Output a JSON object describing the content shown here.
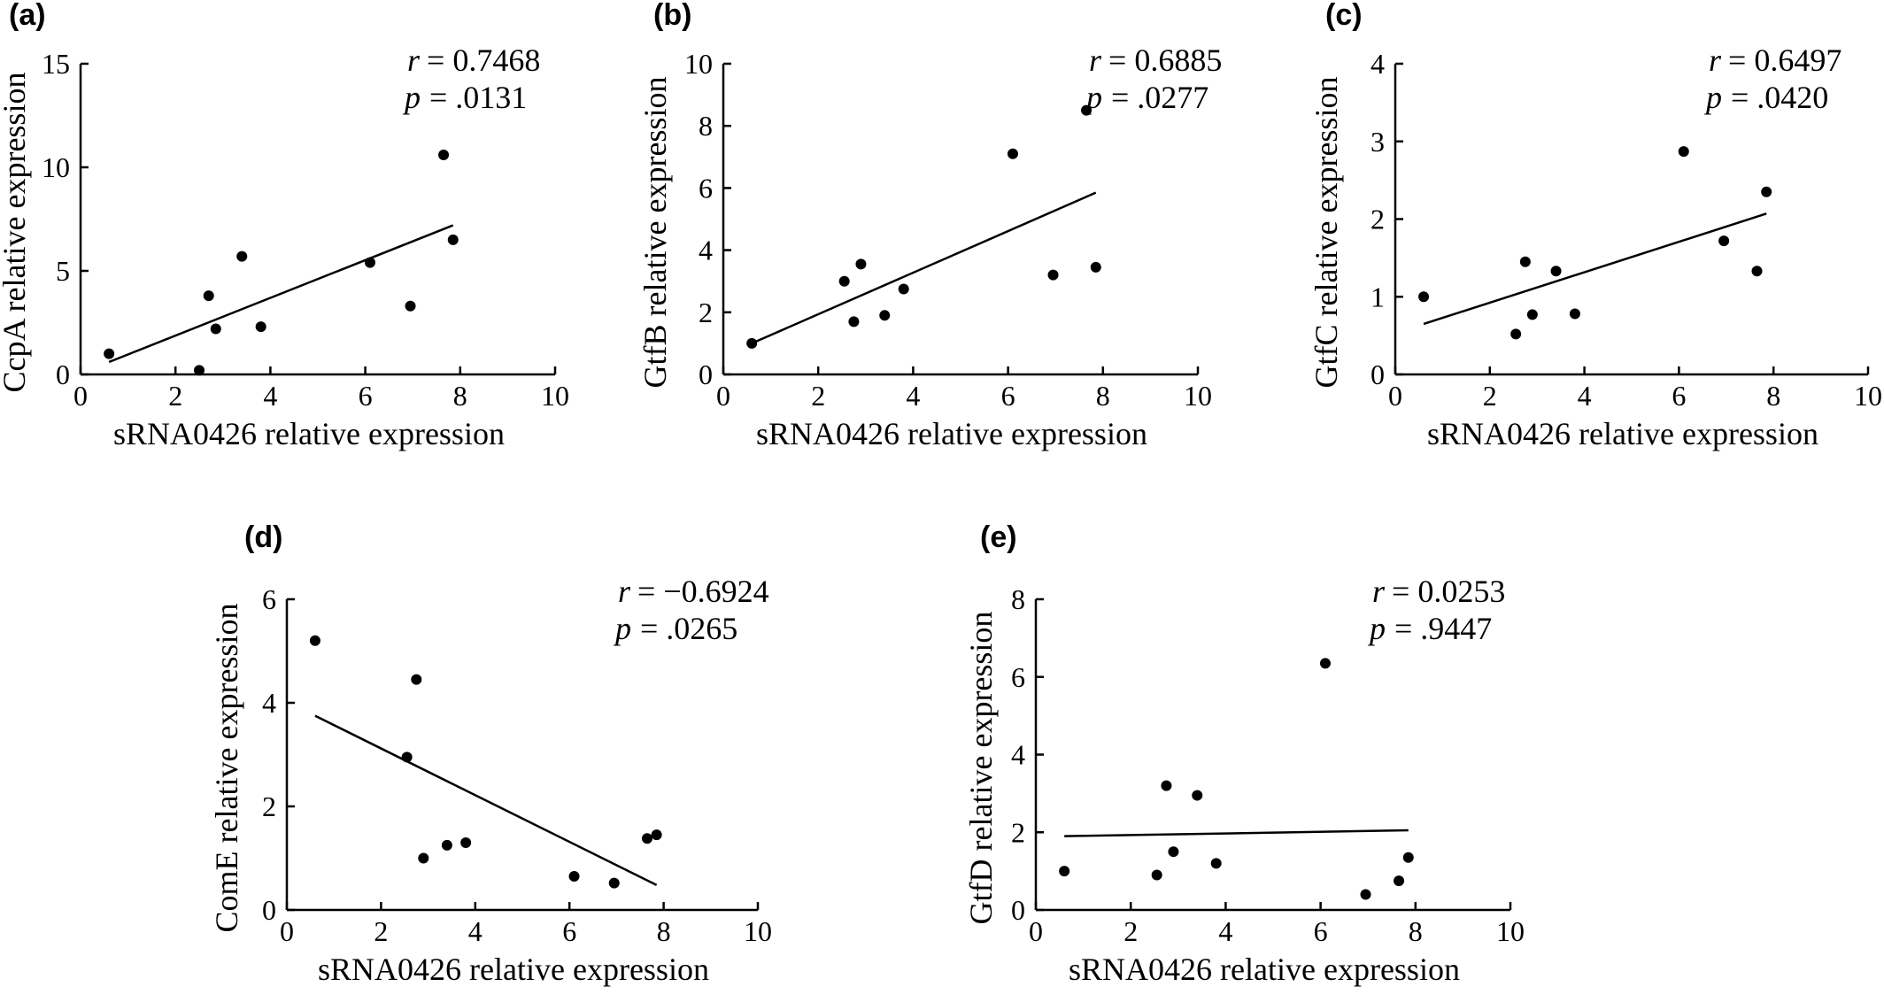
{
  "chart_data": [
    {
      "panel": "(a)",
      "type": "scatter",
      "xlabel": "sRNA0426 relative expression",
      "ylabel": "CcpA relative expression",
      "xlim": [
        0,
        10
      ],
      "ylim": [
        0,
        15
      ],
      "xticks": [
        "0",
        "2",
        "4",
        "6",
        "8",
        "10"
      ],
      "yticks": [
        "0",
        "5",
        "10",
        "15"
      ],
      "r_label": "r",
      "r_value": "= 0.7468",
      "p_label": "p",
      "p_value": "= .0131",
      "points": [
        [
          0.6,
          1.0
        ],
        [
          2.5,
          0.2
        ],
        [
          2.7,
          3.8
        ],
        [
          2.85,
          2.2
        ],
        [
          3.4,
          5.7
        ],
        [
          3.8,
          2.3
        ],
        [
          6.1,
          5.4
        ],
        [
          6.95,
          3.3
        ],
        [
          7.65,
          10.6
        ],
        [
          7.85,
          6.5
        ]
      ],
      "fit": [
        [
          0.6,
          0.6
        ],
        [
          7.85,
          7.2
        ]
      ]
    },
    {
      "panel": "(b)",
      "type": "scatter",
      "xlabel": "sRNA0426 relative expression",
      "ylabel": "GtfB relative expression",
      "xlim": [
        0,
        10
      ],
      "ylim": [
        0,
        10
      ],
      "xticks": [
        "0",
        "2",
        "4",
        "6",
        "8",
        "10"
      ],
      "yticks": [
        "0",
        "2",
        "4",
        "6",
        "8",
        "10"
      ],
      "r_label": "r",
      "r_value": "= 0.6885",
      "p_label": "p",
      "p_value": "= .0277",
      "points": [
        [
          0.6,
          1.0
        ],
        [
          2.55,
          3.0
        ],
        [
          2.75,
          1.7
        ],
        [
          2.9,
          3.55
        ],
        [
          3.4,
          1.9
        ],
        [
          3.8,
          2.75
        ],
        [
          6.1,
          7.1
        ],
        [
          6.95,
          3.2
        ],
        [
          7.65,
          8.5
        ],
        [
          7.85,
          3.45
        ]
      ],
      "fit": [
        [
          0.6,
          1.0
        ],
        [
          7.85,
          5.85
        ]
      ]
    },
    {
      "panel": "(c)",
      "type": "scatter",
      "xlabel": "sRNA0426 relative expression",
      "ylabel": "GtfC relative expression",
      "xlim": [
        0,
        10
      ],
      "ylim": [
        0,
        4
      ],
      "xticks": [
        "0",
        "2",
        "4",
        "6",
        "8",
        "10"
      ],
      "yticks": [
        "0",
        "1",
        "2",
        "3",
        "4"
      ],
      "r_label": "r",
      "r_value": "= 0.6497",
      "p_label": "p",
      "p_value": "= .0420",
      "points": [
        [
          0.6,
          1.0
        ],
        [
          2.55,
          0.52
        ],
        [
          2.75,
          1.45
        ],
        [
          2.9,
          0.77
        ],
        [
          3.4,
          1.33
        ],
        [
          3.8,
          0.78
        ],
        [
          6.1,
          2.87
        ],
        [
          6.95,
          1.72
        ],
        [
          7.65,
          1.33
        ],
        [
          7.85,
          2.35
        ]
      ],
      "fit": [
        [
          0.6,
          0.65
        ],
        [
          7.85,
          2.07
        ]
      ]
    },
    {
      "panel": "(d)",
      "type": "scatter",
      "xlabel": "sRNA0426 relative expression",
      "ylabel": "ComE relative expression",
      "xlim": [
        0,
        10
      ],
      "ylim": [
        0,
        6
      ],
      "xticks": [
        "0",
        "2",
        "4",
        "6",
        "8",
        "10"
      ],
      "yticks": [
        "0",
        "2",
        "4",
        "6"
      ],
      "r_label": "r",
      "r_value": "= −0.6924",
      "p_label": "p",
      "p_value": "= .0265",
      "points": [
        [
          0.6,
          5.2
        ],
        [
          2.55,
          2.95
        ],
        [
          2.75,
          4.45
        ],
        [
          2.9,
          1.0
        ],
        [
          3.4,
          1.25
        ],
        [
          3.8,
          1.3
        ],
        [
          6.1,
          0.65
        ],
        [
          6.95,
          0.52
        ],
        [
          7.65,
          1.38
        ],
        [
          7.85,
          1.45
        ]
      ],
      "fit": [
        [
          0.6,
          3.75
        ],
        [
          7.85,
          0.48
        ]
      ]
    },
    {
      "panel": "(e)",
      "type": "scatter",
      "xlabel": "sRNA0426 relative expression",
      "ylabel": "GtfD relative expression",
      "xlim": [
        0,
        10
      ],
      "ylim": [
        0,
        8
      ],
      "xticks": [
        "0",
        "2",
        "4",
        "6",
        "8",
        "10"
      ],
      "yticks": [
        "0",
        "2",
        "4",
        "6",
        "8"
      ],
      "r_label": "r",
      "r_value": "= 0.0253",
      "p_label": "p",
      "p_value": "= .9447",
      "points": [
        [
          0.6,
          1.0
        ],
        [
          2.55,
          0.9
        ],
        [
          2.75,
          3.2
        ],
        [
          2.9,
          1.5
        ],
        [
          3.4,
          2.95
        ],
        [
          3.8,
          1.2
        ],
        [
          6.1,
          6.35
        ],
        [
          6.95,
          0.4
        ],
        [
          7.65,
          0.75
        ],
        [
          7.85,
          1.35
        ]
      ],
      "fit": [
        [
          0.6,
          1.9
        ],
        [
          7.85,
          2.05
        ]
      ]
    }
  ]
}
